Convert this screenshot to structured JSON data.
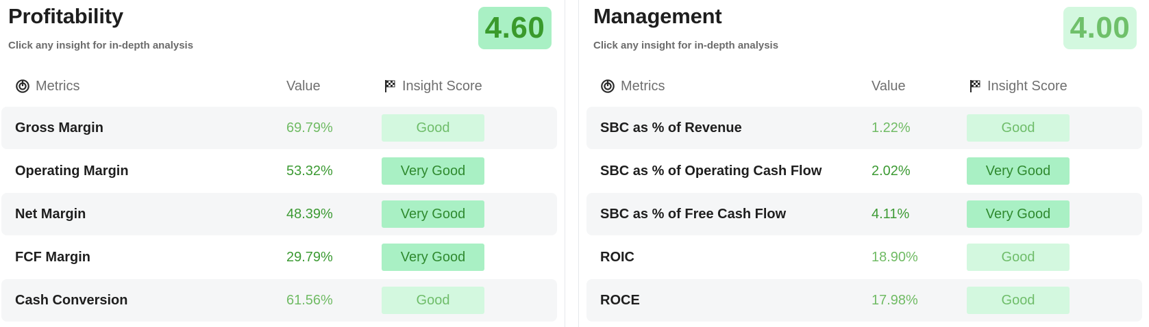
{
  "colors": {
    "very_good_bg": "#a9f0c4",
    "very_good_text": "#2f8a2f",
    "good_bg": "#d3f8df",
    "good_text": "#6fbd6a"
  },
  "panels": [
    {
      "title": "Profitability",
      "subtitle": "Click any insight for in-depth analysis",
      "score": "4.60",
      "columns": {
        "metrics": "Metrics",
        "value": "Value",
        "insight": "Insight Score"
      },
      "rows": [
        {
          "name": "Gross Margin",
          "value": "69.79%",
          "insight": "Good"
        },
        {
          "name": "Operating Margin",
          "value": "53.32%",
          "insight": "Very Good"
        },
        {
          "name": "Net Margin",
          "value": "48.39%",
          "insight": "Very Good"
        },
        {
          "name": "FCF Margin",
          "value": "29.79%",
          "insight": "Very Good"
        },
        {
          "name": "Cash Conversion",
          "value": "61.56%",
          "insight": "Good"
        }
      ]
    },
    {
      "title": "Management",
      "subtitle": "Click any insight for in-depth analysis",
      "score": "4.00",
      "columns": {
        "metrics": "Metrics",
        "value": "Value",
        "insight": "Insight Score"
      },
      "rows": [
        {
          "name": "SBC as % of Revenue",
          "value": "1.22%",
          "insight": "Good"
        },
        {
          "name": "SBC as % of Operating Cash Flow",
          "value": "2.02%",
          "insight": "Very Good"
        },
        {
          "name": "SBC as % of Free Cash Flow",
          "value": "4.11%",
          "insight": "Very Good"
        },
        {
          "name": "ROIC",
          "value": "18.90%",
          "insight": "Good"
        },
        {
          "name": "ROCE",
          "value": "17.98%",
          "insight": "Good"
        }
      ]
    }
  ]
}
